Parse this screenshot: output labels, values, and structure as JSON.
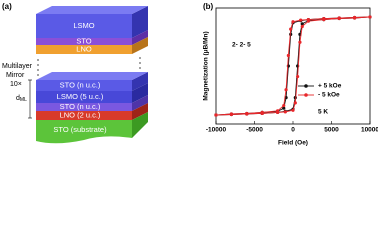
{
  "panel_a": {
    "label": "(a)",
    "top_layers": [
      "LSMO",
      "STO",
      "LNO"
    ],
    "mirror": [
      "Multilayer",
      "Mirror",
      "10×"
    ],
    "period": "d",
    "period_sub": "ML",
    "bottom_layers": [
      "STO (n u.c.)",
      "LSMO (5 u.c.)",
      "STO (n u.c.)",
      "LNO (2 u.c.)",
      "STO (substrate)"
    ]
  },
  "chart_data": {
    "type": "line",
    "panel_label": "(b)",
    "x_label": "Field (Oe)",
    "y_label": "Magnetization (μB/Mn)",
    "annotations": [
      "2- 2- 5",
      "5 K"
    ],
    "xlim": [
      -10000,
      10000
    ],
    "xticks": [
      -10000,
      -5000,
      0,
      5000,
      10000
    ],
    "ylim": [
      -1.1,
      1.1
    ],
    "series": [
      {
        "name": "+ 5 kOe",
        "color": "#111111",
        "x": [
          -10000,
          -8000,
          -6000,
          -4000,
          -2000,
          -1000,
          0,
          300,
          600,
          900,
          1200,
          2000,
          4000,
          6000,
          8000,
          10000,
          8000,
          6000,
          4000,
          2000,
          1000,
          0,
          -300,
          -600,
          -900,
          -1200,
          -2000,
          -4000,
          -6000,
          -8000,
          -10000
        ],
        "values": [
          -0.93,
          -0.92,
          -0.91,
          -0.9,
          -0.88,
          -0.86,
          -0.82,
          -0.6,
          0,
          0.6,
          0.8,
          0.86,
          0.88,
          0.9,
          0.91,
          0.93,
          0.92,
          0.91,
          0.9,
          0.88,
          0.86,
          0.82,
          0.6,
          0,
          -0.6,
          -0.8,
          -0.86,
          -0.88,
          -0.9,
          -0.91,
          -0.93
        ]
      },
      {
        "name": "- 5 kOe",
        "color": "#e8262a",
        "x": [
          -10000,
          -8000,
          -6000,
          -4000,
          -2000,
          -1000,
          0,
          300,
          600,
          900,
          1200,
          2000,
          4000,
          6000,
          8000,
          10000,
          8000,
          6000,
          4000,
          2000,
          1000,
          0,
          -300,
          -600,
          -900,
          -1200,
          -2000,
          -4000,
          -6000,
          -8000,
          -10000
        ],
        "values": [
          -0.93,
          -0.92,
          -0.91,
          -0.9,
          -0.88,
          -0.87,
          -0.84,
          -0.7,
          -0.2,
          0.45,
          0.75,
          0.85,
          0.88,
          0.9,
          0.91,
          0.93,
          0.92,
          0.91,
          0.9,
          0.88,
          0.87,
          0.84,
          0.7,
          0.2,
          -0.45,
          -0.75,
          -0.85,
          -0.88,
          -0.9,
          -0.91,
          -0.93
        ]
      }
    ],
    "legend": "right"
  }
}
